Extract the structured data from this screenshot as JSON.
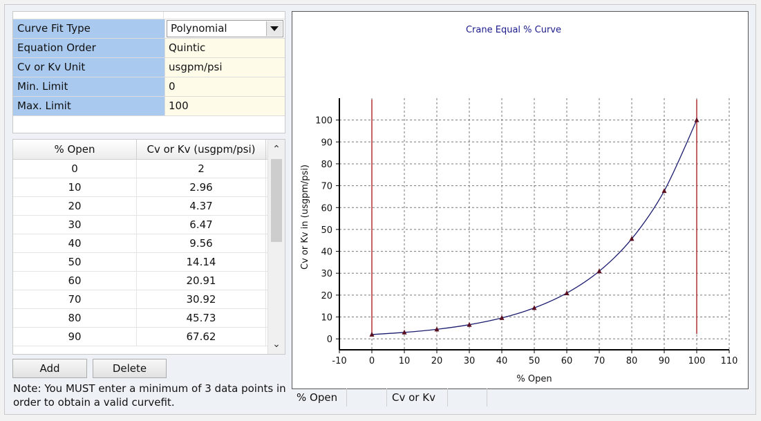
{
  "properties": [
    {
      "name": "Curve Fit Type",
      "value": "Polynomial",
      "dropdown": true
    },
    {
      "name": "Equation Order",
      "value": "Quintic"
    },
    {
      "name": "Cv or Kv Unit",
      "value": "usgpm/psi"
    },
    {
      "name": "Min. Limit",
      "value": "0"
    },
    {
      "name": "Max. Limit",
      "value": "100"
    }
  ],
  "table": {
    "headers": [
      "% Open",
      "Cv or Kv (usgpm/psi)"
    ],
    "rows": [
      [
        "0",
        "2"
      ],
      [
        "10",
        "2.96"
      ],
      [
        "20",
        "4.37"
      ],
      [
        "30",
        "6.47"
      ],
      [
        "40",
        "9.56"
      ],
      [
        "50",
        "14.14"
      ],
      [
        "60",
        "20.91"
      ],
      [
        "70",
        "30.92"
      ],
      [
        "80",
        "45.73"
      ],
      [
        "90",
        "67.62"
      ]
    ]
  },
  "buttons": {
    "add": "Add",
    "delete": "Delete"
  },
  "note": "Note: You MUST enter a minimum of 3 data points in order to obtain a valid curvefit.",
  "status": {
    "x_label": "% Open",
    "y_label": "Cv or Kv"
  },
  "chart_data": {
    "type": "line",
    "title": "Crane Equal % Curve",
    "xlabel": "% Open",
    "ylabel": "Cv or Kv in (usgpm/psi)",
    "xlim": [
      -10,
      110
    ],
    "ylim": [
      -5,
      110
    ],
    "x_ticks": [
      -10,
      0,
      10,
      20,
      30,
      40,
      50,
      60,
      70,
      80,
      90,
      100,
      110
    ],
    "y_ticks": [
      0,
      10,
      20,
      30,
      40,
      50,
      60,
      70,
      80,
      90,
      100
    ],
    "grid": true,
    "limit_lines_x": [
      0,
      100
    ],
    "x": [
      0,
      10,
      20,
      30,
      40,
      50,
      60,
      70,
      80,
      90,
      100
    ],
    "y": [
      2,
      2.96,
      4.37,
      6.47,
      9.56,
      14.14,
      20.91,
      30.92,
      45.73,
      67.62,
      100
    ],
    "colors": {
      "curve": "#1a1a6e",
      "limit": "#b03030",
      "title": "#1a1a8c",
      "marker": "#5a1020"
    }
  }
}
